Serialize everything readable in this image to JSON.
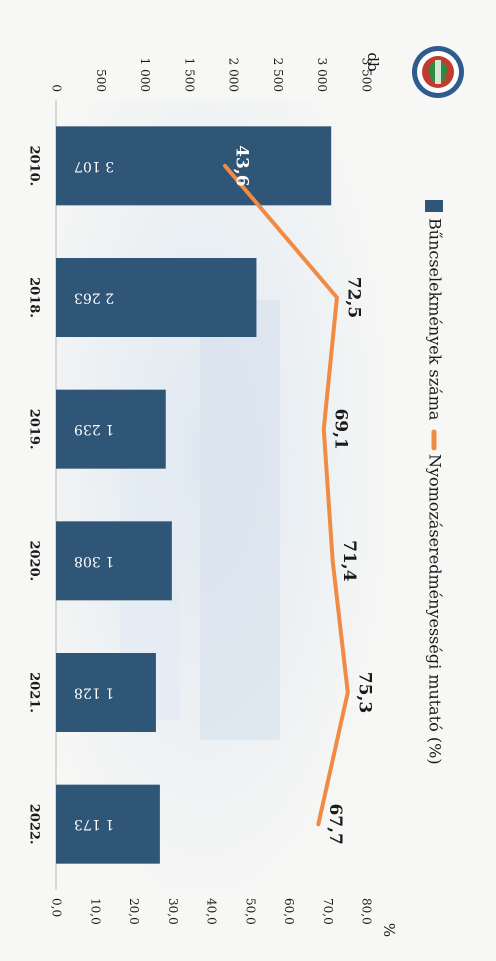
{
  "chart_data": {
    "type": "bar",
    "categories": [
      "2010.",
      "2018.",
      "2019.",
      "2020.",
      "2021.",
      "2022."
    ],
    "series": [
      {
        "name": "Bűncselekmények száma",
        "kind": "bar",
        "axis": "left",
        "values": [
          3107,
          2263,
          1239,
          1308,
          1128,
          1173
        ],
        "labels": [
          "3 107",
          "2 263",
          "1 239",
          "1 308",
          "1 128",
          "1 173"
        ]
      },
      {
        "name": "Nyomozáseredményességi mutató (%)",
        "kind": "line",
        "axis": "right",
        "values": [
          43.6,
          72.5,
          69.1,
          71.4,
          75.3,
          67.7
        ],
        "labels": [
          "43,6",
          "72,5",
          "69,1",
          "71,4",
          "75,3",
          "67,7"
        ]
      }
    ],
    "left_axis": {
      "unit": "db",
      "ylim": [
        0,
        3500
      ],
      "ticks": [
        "0",
        "500",
        "1 000",
        "1 500",
        "2 000",
        "2 500",
        "3 000",
        "3 500"
      ]
    },
    "right_axis": {
      "unit": "%",
      "ylim": [
        0,
        80
      ],
      "ticks": [
        "0,0",
        "10,0",
        "20,0",
        "30,0",
        "40,0",
        "50,0",
        "60,0",
        "70,0",
        "80,0"
      ]
    },
    "legend_position": "top",
    "orientation": "rotated 90° clockwise",
    "colors": {
      "bar": "#2f5577",
      "bar_label": "#ffffff",
      "line": "#f08a45",
      "text": "#1a1a1a"
    }
  }
}
